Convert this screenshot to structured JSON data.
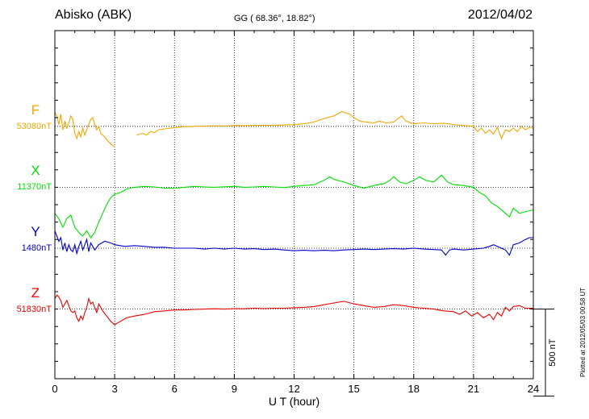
{
  "header": {
    "station": "Abisko (ABK)",
    "coords": "GG ( 68.36°,  18.82°)",
    "date": "2012/04/02"
  },
  "plotted_note": "Plotted at 2012/05/03 00:58 UT",
  "chart_data": {
    "type": "line",
    "xlabel": "U T (hour)",
    "xlim": [
      0,
      24
    ],
    "xticks": [
      0,
      3,
      6,
      9,
      12,
      15,
      18,
      21,
      24
    ],
    "xtick_labels": [
      "0",
      "3",
      "6",
      "9",
      "12",
      "15",
      "18",
      "21",
      "24"
    ],
    "y_unit": "nT",
    "ylim": [
      -400,
      1600
    ],
    "grid": true,
    "scale_bar": {
      "label": "500 nT",
      "value": 500
    },
    "series": [
      {
        "name": "F",
        "baseline_label": "53080nT",
        "offset": 1050,
        "color": "#f0a800",
        "points": [
          [
            0,
            80
          ],
          [
            0.1,
            60
          ],
          [
            0.2,
            10
          ],
          [
            0.3,
            70
          ],
          [
            0.4,
            -20
          ],
          [
            0.5,
            30
          ],
          [
            0.6,
            -10
          ],
          [
            0.7,
            20
          ],
          [
            0.8,
            60
          ],
          [
            0.9,
            40
          ],
          [
            1.0,
            -40
          ],
          [
            1.1,
            -70
          ],
          [
            1.2,
            -30
          ],
          [
            1.3,
            -60
          ],
          [
            1.4,
            -10
          ],
          [
            1.5,
            -50
          ],
          [
            1.6,
            -20
          ],
          [
            1.7,
            10
          ],
          [
            1.8,
            40
          ],
          [
            1.9,
            50
          ],
          [
            2.0,
            10
          ],
          [
            2.1,
            -20
          ],
          [
            2.2,
            0
          ],
          [
            2.3,
            -40
          ],
          [
            2.5,
            -60
          ],
          [
            2.7,
            -90
          ],
          [
            2.9,
            -110
          ],
          [
            3.0,
            -120
          ],
          null,
          [
            4.1,
            -50
          ],
          [
            4.4,
            -40
          ],
          [
            4.6,
            -50
          ],
          [
            4.8,
            -30
          ],
          [
            5.0,
            -35
          ],
          [
            5.2,
            -20
          ],
          [
            5.5,
            -15
          ],
          [
            5.8,
            -10
          ],
          [
            6.2,
            -5
          ],
          [
            6.5,
            -2
          ],
          [
            7.0,
            0
          ],
          [
            7.5,
            2
          ],
          [
            8.0,
            3
          ],
          [
            8.5,
            2
          ],
          [
            9.0,
            5
          ],
          [
            9.5,
            4
          ],
          [
            10.0,
            5
          ],
          [
            10.5,
            6
          ],
          [
            11.0,
            5
          ],
          [
            11.5,
            8
          ],
          [
            12.0,
            10
          ],
          [
            12.5,
            15
          ],
          [
            13.0,
            25
          ],
          [
            13.5,
            45
          ],
          [
            14.0,
            60
          ],
          [
            14.4,
            85
          ],
          [
            14.8,
            70
          ],
          [
            15.0,
            50
          ],
          [
            15.3,
            30
          ],
          [
            15.6,
            25
          ],
          [
            16.0,
            20
          ],
          [
            16.3,
            30
          ],
          [
            16.6,
            20
          ],
          [
            17.0,
            25
          ],
          [
            17.4,
            60
          ],
          [
            17.6,
            30
          ],
          [
            18.0,
            15
          ],
          [
            18.5,
            20
          ],
          [
            19.0,
            15
          ],
          [
            19.5,
            18
          ],
          [
            20.0,
            10
          ],
          [
            20.5,
            5
          ],
          [
            21.0,
            0
          ],
          [
            21.2,
            -30
          ],
          [
            21.4,
            -10
          ],
          [
            21.6,
            -40
          ],
          [
            21.8,
            -20
          ],
          [
            22.0,
            -45
          ],
          [
            22.2,
            -5
          ],
          [
            22.4,
            -70
          ],
          [
            22.6,
            -20
          ],
          [
            22.8,
            -30
          ],
          [
            23.0,
            -10
          ],
          [
            23.2,
            -30
          ],
          [
            23.4,
            0
          ],
          [
            23.6,
            -20
          ],
          [
            23.8,
            -5
          ],
          [
            24.0,
            -10
          ]
        ]
      },
      {
        "name": "X",
        "baseline_label": "11370nT",
        "offset": 700,
        "color": "#00e000",
        "points": [
          [
            0,
            -150
          ],
          [
            0.2,
            -180
          ],
          [
            0.4,
            -230
          ],
          [
            0.6,
            -180
          ],
          [
            0.8,
            -160
          ],
          [
            1.0,
            -230
          ],
          [
            1.2,
            -260
          ],
          [
            1.4,
            -280
          ],
          [
            1.6,
            -250
          ],
          [
            1.8,
            -290
          ],
          [
            2.0,
            -260
          ],
          [
            2.2,
            -200
          ],
          [
            2.4,
            -150
          ],
          [
            2.6,
            -100
          ],
          [
            2.8,
            -60
          ],
          [
            3.0,
            -40
          ],
          [
            3.3,
            -30
          ],
          [
            3.6,
            -10
          ],
          [
            4.0,
            0
          ],
          [
            4.5,
            5
          ],
          [
            5.0,
            2
          ],
          [
            5.5,
            -5
          ],
          [
            6.0,
            -5
          ],
          [
            6.5,
            0
          ],
          [
            7.0,
            5
          ],
          [
            7.5,
            2
          ],
          [
            8.0,
            0
          ],
          [
            8.5,
            3
          ],
          [
            9.0,
            5
          ],
          [
            9.5,
            0
          ],
          [
            10.0,
            2
          ],
          [
            10.5,
            5
          ],
          [
            11.0,
            2
          ],
          [
            11.5,
            -2
          ],
          [
            12.0,
            5
          ],
          [
            12.5,
            10
          ],
          [
            13.0,
            15
          ],
          [
            13.5,
            40
          ],
          [
            13.8,
            60
          ],
          [
            14.0,
            45
          ],
          [
            14.5,
            30
          ],
          [
            15.0,
            10
          ],
          [
            15.5,
            -5
          ],
          [
            16.0,
            10
          ],
          [
            16.5,
            20
          ],
          [
            16.8,
            40
          ],
          [
            17.0,
            60
          ],
          [
            17.3,
            30
          ],
          [
            17.6,
            20
          ],
          [
            18.0,
            40
          ],
          [
            18.3,
            60
          ],
          [
            18.6,
            40
          ],
          [
            19.0,
            30
          ],
          [
            19.4,
            70
          ],
          [
            19.7,
            30
          ],
          [
            20.0,
            15
          ],
          [
            20.5,
            10
          ],
          [
            21.0,
            0
          ],
          [
            21.3,
            -30
          ],
          [
            21.6,
            -50
          ],
          [
            21.9,
            -90
          ],
          [
            22.2,
            -110
          ],
          [
            22.5,
            -140
          ],
          [
            22.8,
            -170
          ],
          [
            23.0,
            -120
          ],
          [
            23.3,
            -150
          ],
          [
            23.6,
            -140
          ],
          [
            24.0,
            -130
          ]
        ]
      },
      {
        "name": "Y",
        "baseline_label": "1480nT",
        "offset": 350,
        "color": "#0000cc",
        "points": [
          [
            0,
            100
          ],
          [
            0.2,
            40
          ],
          [
            0.3,
            60
          ],
          [
            0.4,
            -10
          ],
          [
            0.5,
            30
          ],
          [
            0.6,
            -20
          ],
          [
            0.7,
            20
          ],
          [
            0.8,
            -10
          ],
          [
            0.9,
            -20
          ],
          [
            1.0,
            20
          ],
          [
            1.1,
            -30
          ],
          [
            1.2,
            10
          ],
          [
            1.3,
            40
          ],
          [
            1.4,
            -10
          ],
          [
            1.5,
            20
          ],
          [
            1.6,
            50
          ],
          [
            1.7,
            -20
          ],
          [
            1.8,
            30
          ],
          [
            1.9,
            10
          ],
          [
            2.0,
            -10
          ],
          [
            2.2,
            20
          ],
          [
            2.5,
            40
          ],
          [
            2.8,
            30
          ],
          [
            3.0,
            20
          ],
          [
            3.5,
            10
          ],
          [
            4.0,
            15
          ],
          [
            4.5,
            10
          ],
          [
            5.0,
            5
          ],
          [
            5.5,
            5
          ],
          [
            6.0,
            0
          ],
          [
            6.5,
            0
          ],
          [
            7.0,
            0
          ],
          [
            7.5,
            -5
          ],
          [
            8.0,
            0
          ],
          [
            8.5,
            -5
          ],
          [
            9.0,
            0
          ],
          [
            9.5,
            -5
          ],
          [
            10.0,
            -3
          ],
          [
            10.5,
            -8
          ],
          [
            11.0,
            -5
          ],
          [
            11.5,
            -10
          ],
          [
            12.0,
            -15
          ],
          [
            12.5,
            -12
          ],
          [
            13.0,
            -15
          ],
          [
            13.5,
            -12
          ],
          [
            14.0,
            -15
          ],
          [
            14.5,
            -10
          ],
          [
            15.0,
            -8
          ],
          [
            15.5,
            -5
          ],
          [
            16.0,
            -8
          ],
          [
            16.5,
            -5
          ],
          [
            17.0,
            -3
          ],
          [
            17.5,
            -5
          ],
          [
            18.0,
            0
          ],
          [
            18.5,
            -5
          ],
          [
            19.0,
            -8
          ],
          [
            19.4,
            -10
          ],
          [
            19.6,
            -40
          ],
          [
            19.8,
            -10
          ],
          [
            20.0,
            -5
          ],
          [
            20.5,
            -10
          ],
          [
            21.0,
            -5
          ],
          [
            21.5,
            0
          ],
          [
            21.8,
            10
          ],
          [
            22.0,
            20
          ],
          [
            22.3,
            5
          ],
          [
            22.6,
            -10
          ],
          [
            22.8,
            -40
          ],
          [
            23.0,
            20
          ],
          [
            23.3,
            30
          ],
          [
            23.6,
            50
          ],
          [
            23.8,
            60
          ],
          [
            24.0,
            60
          ]
        ]
      },
      {
        "name": "Z",
        "baseline_label": "51830nT",
        "offset": 0,
        "color": "#ee0000",
        "points": [
          [
            0,
            60
          ],
          [
            0.1,
            80
          ],
          [
            0.2,
            70
          ],
          [
            0.3,
            50
          ],
          [
            0.4,
            10
          ],
          [
            0.5,
            30
          ],
          [
            0.6,
            50
          ],
          [
            0.7,
            20
          ],
          [
            0.8,
            -10
          ],
          [
            0.9,
            -20
          ],
          [
            1.0,
            -10
          ],
          [
            1.1,
            -50
          ],
          [
            1.2,
            -70
          ],
          [
            1.3,
            -40
          ],
          [
            1.4,
            -60
          ],
          [
            1.5,
            -20
          ],
          [
            1.6,
            10
          ],
          [
            1.7,
            60
          ],
          [
            1.8,
            30
          ],
          [
            1.9,
            40
          ],
          [
            2.0,
            10
          ],
          [
            2.1,
            -20
          ],
          [
            2.2,
            30
          ],
          [
            2.4,
            -10
          ],
          [
            2.6,
            -40
          ],
          [
            2.8,
            -70
          ],
          [
            3.0,
            -90
          ],
          [
            3.3,
            -70
          ],
          [
            3.6,
            -50
          ],
          [
            4.0,
            -40
          ],
          [
            4.5,
            -30
          ],
          [
            5.0,
            -15
          ],
          [
            5.5,
            -10
          ],
          [
            6.0,
            -5
          ],
          [
            6.5,
            -5
          ],
          [
            7.0,
            -2
          ],
          [
            7.5,
            0
          ],
          [
            8.0,
            2
          ],
          [
            8.5,
            0
          ],
          [
            9.0,
            3
          ],
          [
            9.5,
            2
          ],
          [
            10.0,
            5
          ],
          [
            10.5,
            3
          ],
          [
            11.0,
            5
          ],
          [
            11.5,
            5
          ],
          [
            12.0,
            8
          ],
          [
            12.5,
            10
          ],
          [
            13.0,
            15
          ],
          [
            13.5,
            25
          ],
          [
            14.0,
            35
          ],
          [
            14.5,
            45
          ],
          [
            15.0,
            30
          ],
          [
            15.5,
            20
          ],
          [
            16.0,
            10
          ],
          [
            16.5,
            15
          ],
          [
            17.0,
            25
          ],
          [
            17.5,
            20
          ],
          [
            18.0,
            10
          ],
          [
            18.5,
            5
          ],
          [
            19.0,
            0
          ],
          [
            19.5,
            -10
          ],
          [
            20.0,
            -15
          ],
          [
            20.3,
            -30
          ],
          [
            20.6,
            -10
          ],
          [
            20.9,
            -40
          ],
          [
            21.2,
            -20
          ],
          [
            21.5,
            -50
          ],
          [
            21.8,
            -30
          ],
          [
            22.0,
            -60
          ],
          [
            22.2,
            -20
          ],
          [
            22.4,
            -40
          ],
          [
            22.6,
            10
          ],
          [
            22.8,
            -10
          ],
          [
            23.0,
            15
          ],
          [
            23.3,
            20
          ],
          [
            23.6,
            5
          ],
          [
            24.0,
            5
          ]
        ]
      }
    ]
  }
}
